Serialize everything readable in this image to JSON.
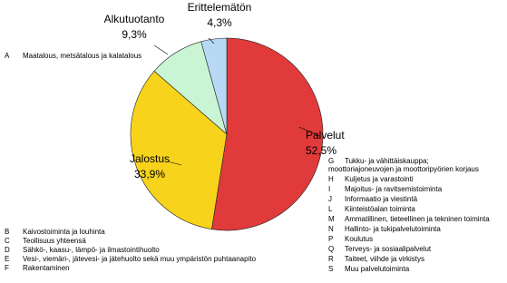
{
  "chart_data": {
    "type": "pie",
    "categories": [
      "Palvelut",
      "Jalostus",
      "Alkutuotanto",
      "Erittelemätön"
    ],
    "values": [
      52.5,
      33.9,
      9.3,
      4.3
    ],
    "value_labels": [
      "52,5%",
      "33,9%",
      "9,3%",
      "4,3%"
    ],
    "colors": [
      "#e03a3a",
      "#f7d31c",
      "#c9f5d4",
      "#b7d9f5"
    ]
  },
  "notes": [
    {
      "rows": [
        {
          "code": "A",
          "text": [
            "Maatalous, metsätalous  ja kalatalous"
          ]
        }
      ]
    },
    {
      "rows": [
        {
          "code": "G",
          "text": [
            "Tukku- ja vähittäiskauppa;",
            "moottoriajoneuvojen ja moottoripyörien korjaus"
          ]
        },
        {
          "code": "H",
          "text": [
            "Kuljetus ja varastointi"
          ]
        },
        {
          "code": "I",
          "text": [
            "Majoitus- ja ravitsemistoiminta"
          ]
        },
        {
          "code": "J",
          "text": [
            "Informaatio ja viestintä"
          ]
        },
        {
          "code": "L",
          "text": [
            "Kiinteistöalan toiminta"
          ]
        },
        {
          "code": "M",
          "text": [
            "Ammatillinen, tieteellinen ja tekninen toiminta"
          ]
        },
        {
          "code": "N",
          "text": [
            "Hallinto- ja tukipalvelutoiminta"
          ]
        },
        {
          "code": "P",
          "text": [
            "Koulutus"
          ]
        },
        {
          "code": "Q",
          "text": [
            "Terveys- ja sosiaalipalvelut"
          ]
        },
        {
          "code": "R",
          "text": [
            "Taiteet, viihde ja virkistys"
          ]
        },
        {
          "code": "S",
          "text": [
            "Muu palvelutoiminta"
          ]
        }
      ]
    },
    {
      "rows": [
        {
          "code": "B",
          "text": [
            "Kaivostoiminta ja louhinta"
          ]
        },
        {
          "code": "C",
          "text": [
            "Teollisuus yhteensä"
          ]
        },
        {
          "code": "D",
          "text": [
            "Sähkö-, kaasu-, lämpö- ja ilmastointihuolto"
          ]
        },
        {
          "code": "E",
          "text": [
            "Vesi-, viemäri-, jätevesi- ja  jätehuolto sekä muu ympäristön puhtaanapito"
          ]
        },
        {
          "code": "F",
          "text": [
            "Rakentaminen"
          ]
        }
      ]
    }
  ]
}
